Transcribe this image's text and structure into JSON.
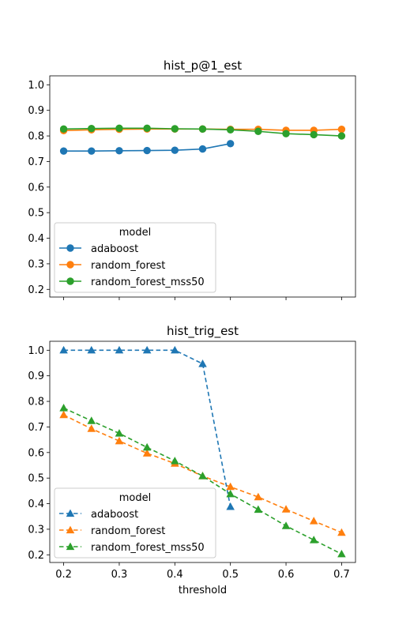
{
  "chart_data": [
    {
      "type": "line",
      "title": "hist_p@1_est",
      "xlabel": "",
      "ylabel": "",
      "xlim": [
        0.175,
        0.725
      ],
      "ylim": [
        0.17,
        1.035
      ],
      "x_ticks": [
        0.2,
        0.3,
        0.4,
        0.5,
        0.6,
        0.7
      ],
      "y_ticks": [
        0.2,
        0.3,
        0.4,
        0.5,
        0.6,
        0.7,
        0.8,
        0.9,
        1.0
      ],
      "x_tick_labels_visible": false,
      "marker": "circle",
      "line_style": "solid",
      "legend": {
        "title": "model",
        "placement": "lower-left"
      },
      "series": [
        {
          "name": "adaboost",
          "color": "#1f77b4",
          "x": [
            0.2,
            0.25,
            0.3,
            0.35,
            0.4,
            0.45,
            0.5
          ],
          "y": [
            0.741,
            0.741,
            0.742,
            0.743,
            0.744,
            0.749,
            0.77
          ]
        },
        {
          "name": "random_forest",
          "color": "#ff7f0e",
          "x": [
            0.2,
            0.25,
            0.3,
            0.35,
            0.4,
            0.45,
            0.5,
            0.55,
            0.6,
            0.65,
            0.7
          ],
          "y": [
            0.821,
            0.824,
            0.826,
            0.827,
            0.827,
            0.827,
            0.826,
            0.826,
            0.822,
            0.822,
            0.826
          ]
        },
        {
          "name": "random_forest_mss50",
          "color": "#2ca02c",
          "x": [
            0.2,
            0.25,
            0.3,
            0.35,
            0.4,
            0.45,
            0.5,
            0.55,
            0.6,
            0.65,
            0.7
          ],
          "y": [
            0.827,
            0.829,
            0.83,
            0.83,
            0.828,
            0.827,
            0.824,
            0.818,
            0.809,
            0.805,
            0.8
          ]
        }
      ]
    },
    {
      "type": "line",
      "title": "hist_trig_est",
      "xlabel": "threshold",
      "ylabel": "",
      "xlim": [
        0.175,
        0.725
      ],
      "ylim": [
        0.17,
        1.035
      ],
      "x_ticks": [
        0.2,
        0.3,
        0.4,
        0.5,
        0.6,
        0.7
      ],
      "y_ticks": [
        0.2,
        0.3,
        0.4,
        0.5,
        0.6,
        0.7,
        0.8,
        0.9,
        1.0
      ],
      "x_tick_labels_visible": true,
      "marker": "triangle",
      "line_style": "dashed",
      "legend": {
        "title": "model",
        "placement": "lower-left"
      },
      "series": [
        {
          "name": "adaboost",
          "color": "#1f77b4",
          "x": [
            0.2,
            0.25,
            0.3,
            0.35,
            0.4,
            0.45,
            0.5
          ],
          "y": [
            1.0,
            1.0,
            1.0,
            1.0,
            1.0,
            0.947,
            0.388
          ]
        },
        {
          "name": "random_forest",
          "color": "#ff7f0e",
          "x": [
            0.2,
            0.25,
            0.3,
            0.35,
            0.4,
            0.45,
            0.5,
            0.55,
            0.6,
            0.65,
            0.7
          ],
          "y": [
            0.747,
            0.693,
            0.645,
            0.597,
            0.557,
            0.508,
            0.466,
            0.426,
            0.378,
            0.332,
            0.287
          ]
        },
        {
          "name": "random_forest_mss50",
          "color": "#2ca02c",
          "x": [
            0.2,
            0.25,
            0.3,
            0.35,
            0.4,
            0.45,
            0.5,
            0.55,
            0.6,
            0.65,
            0.7
          ],
          "y": [
            0.774,
            0.724,
            0.675,
            0.62,
            0.567,
            0.508,
            0.438,
            0.377,
            0.313,
            0.258,
            0.203
          ]
        }
      ]
    }
  ]
}
